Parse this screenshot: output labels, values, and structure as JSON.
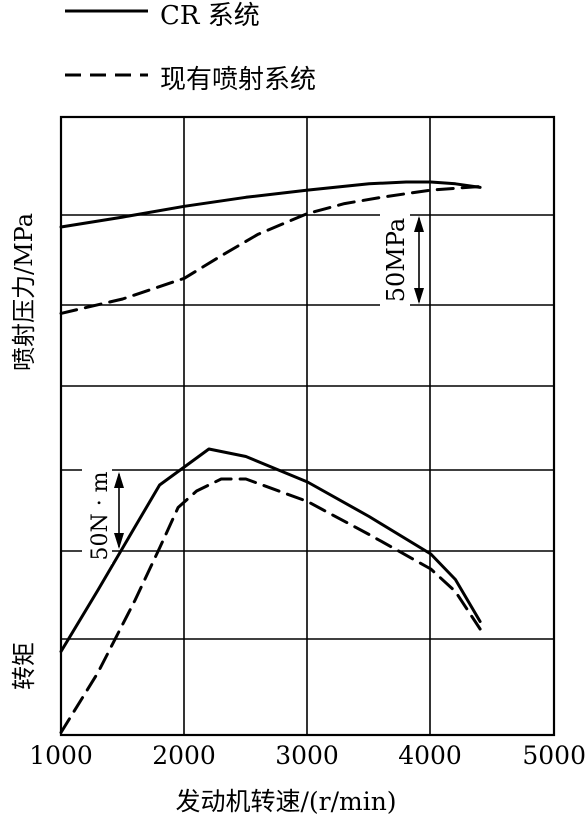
{
  "chart_data": {
    "type": "line",
    "xlabel": "发动机转速/(r/min)",
    "x_ticks": [
      1000,
      2000,
      3000,
      4000,
      5000
    ],
    "xlim": [
      1000,
      5000
    ],
    "grid": true,
    "legend": {
      "placement": "top-left",
      "entries": [
        {
          "name": "CR 系统",
          "style": "solid"
        },
        {
          "name": "现有喷射系统",
          "style": "dashed"
        }
      ]
    },
    "panels": [
      {
        "id": "pressure",
        "ylabel": "喷射压力/MPa",
        "scale_label": "50MPa",
        "scale_value": 50,
        "series": [
          {
            "name": "CR 系统",
            "style": "solid",
            "x": [
              1000,
              1500,
              2000,
              2500,
              3000,
              3500,
              3800,
              4000,
              4200,
              4400
            ],
            "y": [
              180,
              191,
              203,
              213,
              221,
              228,
              230,
              230,
              228,
              224
            ]
          },
          {
            "name": "现有喷射系统",
            "style": "dashed",
            "x": [
              1000,
              1500,
              2000,
              2300,
              2600,
              3000,
              3300,
              3600,
              4000,
              4400
            ],
            "y": [
              84,
              100,
              123,
              148,
              172,
              195,
              206,
              213,
              221,
              225
            ]
          }
        ]
      },
      {
        "id": "torque",
        "ylabel": "转矩",
        "scale_label": "50N · m",
        "scale_value": 50,
        "series": [
          {
            "name": "CR 系统",
            "style": "solid",
            "x": [
              1000,
              1300,
              1600,
              1800,
              2000,
              2200,
              2500,
              3000,
              3500,
              4000,
              4200,
              4400
            ],
            "y": [
              55,
              96,
              138,
              166,
              178,
              190,
              185,
              168,
              145,
              120,
              103,
              75
            ]
          },
          {
            "name": "现有喷射系统",
            "style": "dashed",
            "x": [
              1000,
              1300,
              1600,
              1800,
              1950,
              2100,
              2300,
              2500,
              3000,
              3500,
              4000,
              4200,
              4400
            ],
            "y": [
              1,
              41,
              89,
              124,
              151,
              162,
              170,
              170,
              155,
              133,
              110,
              95,
              70
            ]
          }
        ]
      }
    ]
  }
}
